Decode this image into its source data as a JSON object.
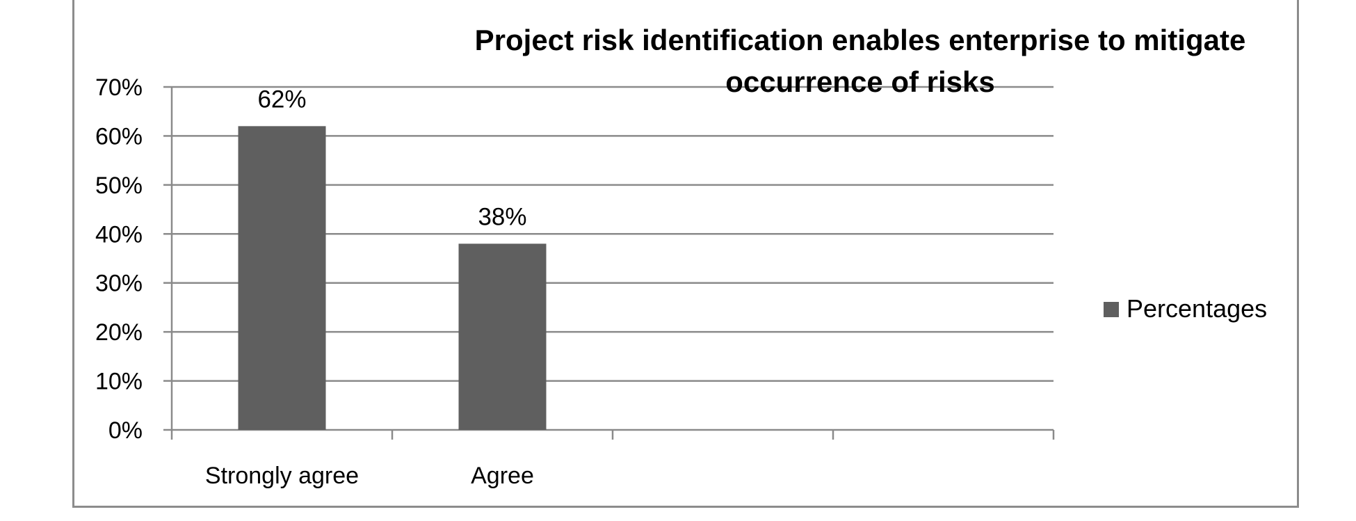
{
  "chart_data": {
    "type": "bar",
    "title_lines": [
      "Project risk identification enables enterprise to mitigate",
      "occurrence of risks"
    ],
    "categories": [
      "Strongly agree",
      "Agree",
      "",
      ""
    ],
    "series": [
      {
        "name": "Percentages",
        "values": [
          62,
          38,
          null,
          null
        ],
        "data_labels": [
          "62%",
          "38%",
          "",
          ""
        ]
      }
    ],
    "y_ticks": [
      "0%",
      "10%",
      "20%",
      "30%",
      "40%",
      "50%",
      "60%",
      "70%"
    ],
    "ylim": [
      0,
      70
    ],
    "grid": true,
    "legend_position": "right",
    "colors": {
      "bar": "#5f5f5f",
      "grid": "#8a8a8a",
      "frame": "#8c8c8c"
    }
  }
}
